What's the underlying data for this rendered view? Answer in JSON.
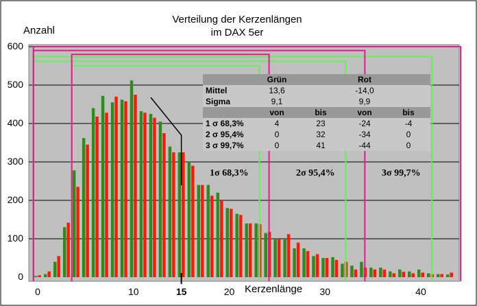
{
  "chart_data": {
    "type": "bar",
    "title": [
      "Verteilung der Kerzenlängen",
      "im DAX 5er"
    ],
    "ylabel": "Anzahl",
    "xlabel": "Kerzenlänge",
    "x_tick_labels": [
      "0",
      "10",
      "15",
      "20",
      "30",
      "40"
    ],
    "y_tick_labels": [
      "0",
      "100",
      "200",
      "300",
      "400",
      "500",
      "600"
    ],
    "ylim": [
      0,
      600
    ],
    "xlim": [
      -1,
      44
    ],
    "x": [
      0,
      1,
      2,
      3,
      4,
      5,
      6,
      7,
      8,
      9,
      10,
      11,
      12,
      13,
      14,
      15,
      16,
      17,
      18,
      19,
      20,
      21,
      22,
      23,
      24,
      25,
      26,
      27,
      28,
      29,
      30,
      31,
      32,
      33,
      34,
      35,
      36,
      37,
      38,
      39,
      40,
      41,
      42,
      43
    ],
    "series": [
      {
        "name": "Grün",
        "color": "#2e8b1e",
        "values": [
          3,
          8,
          40,
          130,
          278,
          362,
          440,
          472,
          455,
          462,
          512,
          432,
          425,
          405,
          340,
          325,
          300,
          240,
          240,
          220,
          180,
          165,
          140,
          140,
          115,
          100,
          100,
          75,
          75,
          55,
          50,
          52,
          35,
          30,
          40,
          25,
          25,
          15,
          20,
          15,
          20,
          10,
          8,
          7
        ]
      },
      {
        "name": "Rot",
        "color": "#ff1a00",
        "values": [
          5,
          15,
          55,
          142,
          235,
          345,
          418,
          428,
          470,
          458,
          475,
          428,
          415,
          375,
          325,
          325,
          290,
          240,
          212,
          200,
          178,
          162,
          140,
          138,
          118,
          100,
          112,
          90,
          68,
          60,
          50,
          45,
          40,
          20,
          25,
          20,
          20,
          10,
          14,
          10,
          12,
          8,
          8,
          12
        ]
      }
    ],
    "marker_x": "15",
    "ranges": [
      {
        "label": "Grün 1σ",
        "from": 4,
        "to": 23,
        "height": 550,
        "color": "#66ee55"
      },
      {
        "label": "Grün 2σ",
        "from": 0,
        "to": 32,
        "height": 562,
        "color": "#66ee55"
      },
      {
        "label": "Grün 3σ",
        "from": 0,
        "to": 41,
        "height": 574,
        "color": "#66ee55"
      },
      {
        "label": "Rot 1σ",
        "from": 4,
        "to": 24,
        "height": 580,
        "color": "#e8198a"
      },
      {
        "label": "Rot 2σ",
        "from": 0,
        "to": 34,
        "height": 590,
        "color": "#e8198a"
      },
      {
        "label": "Rot 3σ",
        "from": 0,
        "to": 44,
        "height": 600,
        "color": "#e8198a"
      }
    ],
    "legend": "none",
    "grid": "horizontal"
  },
  "sigma_labels": [
    "1σ  68,3%",
    "2σ  95,4%",
    "3σ  99,7%"
  ],
  "table": {
    "header": [
      "",
      "Grün",
      "",
      "Rot",
      ""
    ],
    "rows": [
      [
        "Mittel",
        "13,6",
        "",
        "-14,0",
        ""
      ],
      [
        "Sigma",
        "9,1",
        "",
        "9,9",
        ""
      ]
    ],
    "subheader": [
      "",
      "von",
      "bis",
      "von",
      "bis"
    ],
    "ranges": [
      [
        "1 σ  68,3%",
        "4",
        "23",
        "-24",
        "-4"
      ],
      [
        "2 σ  95,4%",
        "0",
        "32",
        "-34",
        "0"
      ],
      [
        "3 σ  99,7%",
        "0",
        "41",
        "-44",
        "0"
      ]
    ]
  }
}
